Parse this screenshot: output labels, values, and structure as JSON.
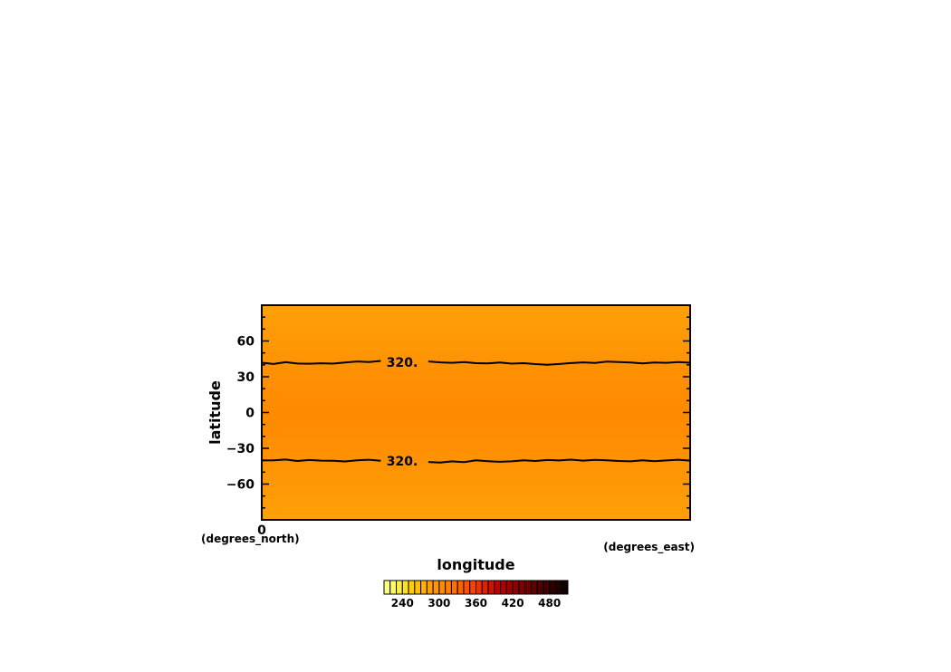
{
  "chart_data": {
    "type": "heatmap",
    "xlabel": "longitude",
    "ylabel": "latitude",
    "x_unit": "(degrees_east)",
    "y_unit": "(degrees_north)",
    "xlim": [
      0,
      360
    ],
    "ylim": [
      -90,
      90
    ],
    "x_ticks": [
      {
        "value": 0,
        "label": "0"
      }
    ],
    "y_ticks": [
      {
        "value": 60,
        "label": "60"
      },
      {
        "value": 30,
        "label": "30"
      },
      {
        "value": 0,
        "label": "0"
      },
      {
        "value": -30,
        "label": "−30"
      },
      {
        "value": -60,
        "label": "−60"
      }
    ],
    "field": {
      "description_levels": "fill varies by latitude",
      "lat": [
        -90,
        -60,
        -41,
        -20,
        0,
        20,
        41,
        60,
        90
      ],
      "value": [
        306,
        314,
        320,
        326,
        329,
        326,
        320,
        314,
        306
      ]
    },
    "contours": [
      {
        "level": 320,
        "label": "320.",
        "label_x": 118,
        "points": [
          [
            0,
            41.8
          ],
          [
            10,
            40.7
          ],
          [
            20,
            42.2
          ],
          [
            30,
            41.1
          ],
          [
            40,
            40.9
          ],
          [
            50,
            41.3
          ],
          [
            60,
            41.0
          ],
          [
            70,
            42.0
          ],
          [
            80,
            42.8
          ],
          [
            90,
            42.4
          ],
          [
            100,
            43.3
          ],
          [
            110,
            42.6
          ],
          [
            120,
            42.0
          ],
          [
            130,
            41.9
          ],
          [
            140,
            42.8
          ],
          [
            150,
            42.1
          ],
          [
            160,
            41.7
          ],
          [
            170,
            42.3
          ],
          [
            180,
            41.4
          ],
          [
            190,
            41.2
          ],
          [
            200,
            41.9
          ],
          [
            210,
            41.0
          ],
          [
            220,
            41.4
          ],
          [
            230,
            40.6
          ],
          [
            240,
            40.1
          ],
          [
            250,
            40.7
          ],
          [
            260,
            41.5
          ],
          [
            270,
            42.1
          ],
          [
            280,
            41.6
          ],
          [
            290,
            42.7
          ],
          [
            300,
            42.3
          ],
          [
            310,
            41.9
          ],
          [
            320,
            41.2
          ],
          [
            330,
            42.0
          ],
          [
            340,
            41.7
          ],
          [
            350,
            42.4
          ],
          [
            360,
            41.8
          ]
        ]
      },
      {
        "level": 320,
        "label": "320.",
        "label_x": 118,
        "points": [
          [
            0,
            -40.2
          ],
          [
            10,
            -40.0
          ],
          [
            20,
            -39.4
          ],
          [
            30,
            -40.6
          ],
          [
            40,
            -39.8
          ],
          [
            50,
            -40.3
          ],
          [
            60,
            -40.5
          ],
          [
            70,
            -41.0
          ],
          [
            80,
            -40.1
          ],
          [
            90,
            -39.6
          ],
          [
            100,
            -40.4
          ],
          [
            110,
            -40.8
          ],
          [
            120,
            -40.2
          ],
          [
            130,
            -40.0
          ],
          [
            140,
            -41.5
          ],
          [
            150,
            -42.0
          ],
          [
            160,
            -40.9
          ],
          [
            170,
            -41.6
          ],
          [
            180,
            -40.1
          ],
          [
            190,
            -40.8
          ],
          [
            200,
            -41.3
          ],
          [
            210,
            -40.9
          ],
          [
            220,
            -40.1
          ],
          [
            230,
            -40.6
          ],
          [
            240,
            -39.8
          ],
          [
            250,
            -40.2
          ],
          [
            260,
            -39.5
          ],
          [
            270,
            -40.3
          ],
          [
            280,
            -39.7
          ],
          [
            290,
            -40.0
          ],
          [
            300,
            -40.6
          ],
          [
            310,
            -40.9
          ],
          [
            320,
            -40.0
          ],
          [
            330,
            -40.8
          ],
          [
            340,
            -40.2
          ],
          [
            350,
            -39.6
          ],
          [
            360,
            -40.3
          ]
        ]
      }
    ],
    "colorbar": {
      "min": 210,
      "max": 510,
      "step": 10,
      "tick_labels": [
        "240",
        "300",
        "360",
        "420",
        "480"
      ],
      "colors": [
        "#ffff80",
        "#ffff60",
        "#fff040",
        "#ffe020",
        "#ffd000",
        "#ffc000",
        "#ffb000",
        "#ffa000",
        "#ff9600",
        "#ff8c00",
        "#ff8000",
        "#ff7000",
        "#ff6000",
        "#ff5000",
        "#ff4000",
        "#f03000",
        "#e02000",
        "#d01000",
        "#c00000",
        "#b00000",
        "#a00000",
        "#900000",
        "#800000",
        "#700000",
        "#600000",
        "#500000",
        "#400000",
        "#300000",
        "#200000",
        "#100000"
      ]
    }
  }
}
